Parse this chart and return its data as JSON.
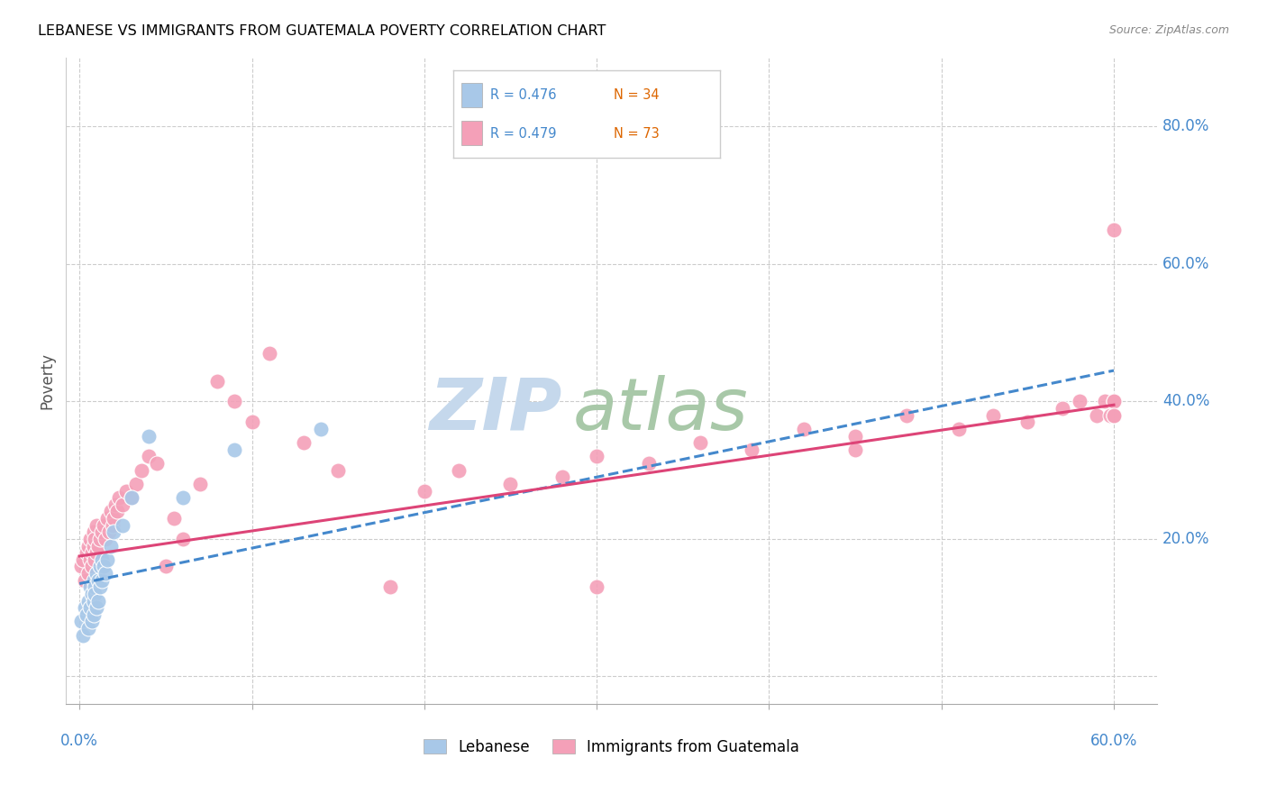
{
  "title": "LEBANESE VS IMMIGRANTS FROM GUATEMALA POVERTY CORRELATION CHART",
  "source": "Source: ZipAtlas.com",
  "ylabel": "Poverty",
  "xlim": [
    0,
    0.6
  ],
  "ylim": [
    -0.02,
    0.9
  ],
  "color_blue": "#a8c8e8",
  "color_pink": "#f4a0b8",
  "color_blue_line": "#4488cc",
  "color_pink_line": "#dd4477",
  "color_blue_text": "#4488cc",
  "color_n_text": "#dd6600",
  "background_color": "#ffffff",
  "grid_color": "#cccccc",
  "blue_x": [
    0.001,
    0.002,
    0.003,
    0.004,
    0.005,
    0.005,
    0.006,
    0.006,
    0.007,
    0.007,
    0.008,
    0.008,
    0.008,
    0.009,
    0.009,
    0.01,
    0.01,
    0.011,
    0.011,
    0.012,
    0.012,
    0.013,
    0.013,
    0.014,
    0.015,
    0.016,
    0.018,
    0.02,
    0.025,
    0.03,
    0.04,
    0.06,
    0.09,
    0.14
  ],
  "blue_y": [
    0.08,
    0.06,
    0.1,
    0.09,
    0.07,
    0.11,
    0.1,
    0.13,
    0.12,
    0.08,
    0.09,
    0.14,
    0.11,
    0.13,
    0.12,
    0.15,
    0.1,
    0.14,
    0.11,
    0.13,
    0.16,
    0.14,
    0.17,
    0.16,
    0.15,
    0.17,
    0.19,
    0.21,
    0.22,
    0.26,
    0.35,
    0.26,
    0.33,
    0.36
  ],
  "pink_x": [
    0.001,
    0.002,
    0.003,
    0.004,
    0.005,
    0.005,
    0.006,
    0.006,
    0.007,
    0.007,
    0.008,
    0.008,
    0.009,
    0.009,
    0.01,
    0.01,
    0.011,
    0.012,
    0.013,
    0.014,
    0.015,
    0.016,
    0.017,
    0.018,
    0.019,
    0.02,
    0.021,
    0.022,
    0.023,
    0.025,
    0.027,
    0.03,
    0.033,
    0.036,
    0.04,
    0.045,
    0.05,
    0.055,
    0.06,
    0.07,
    0.08,
    0.09,
    0.1,
    0.11,
    0.13,
    0.15,
    0.18,
    0.2,
    0.22,
    0.25,
    0.28,
    0.3,
    0.33,
    0.36,
    0.39,
    0.42,
    0.45,
    0.48,
    0.51,
    0.53,
    0.55,
    0.57,
    0.58,
    0.59,
    0.595,
    0.598,
    0.6,
    0.6,
    0.6,
    0.6,
    0.45,
    0.3,
    0.6
  ],
  "pink_y": [
    0.16,
    0.17,
    0.14,
    0.18,
    0.15,
    0.19,
    0.17,
    0.2,
    0.18,
    0.16,
    0.19,
    0.21,
    0.17,
    0.2,
    0.18,
    0.22,
    0.19,
    0.2,
    0.21,
    0.22,
    0.2,
    0.23,
    0.21,
    0.24,
    0.22,
    0.23,
    0.25,
    0.24,
    0.26,
    0.25,
    0.27,
    0.26,
    0.28,
    0.3,
    0.32,
    0.31,
    0.16,
    0.23,
    0.2,
    0.28,
    0.43,
    0.4,
    0.37,
    0.47,
    0.34,
    0.3,
    0.13,
    0.27,
    0.3,
    0.28,
    0.29,
    0.32,
    0.31,
    0.34,
    0.33,
    0.36,
    0.35,
    0.38,
    0.36,
    0.38,
    0.37,
    0.39,
    0.4,
    0.38,
    0.4,
    0.38,
    0.4,
    0.38,
    0.4,
    0.38,
    0.33,
    0.13,
    0.65
  ],
  "blue_line_x0": 0.0,
  "blue_line_x1": 0.6,
  "blue_line_y0": 0.135,
  "blue_line_y1": 0.445,
  "pink_line_x0": 0.0,
  "pink_line_x1": 0.6,
  "pink_line_y0": 0.175,
  "pink_line_y1": 0.395
}
